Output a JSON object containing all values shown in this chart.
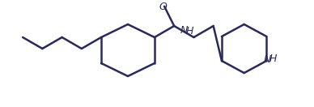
{
  "background_color": "#ffffff",
  "line_color": "#2a2a5a",
  "line_width": 1.8,
  "figsize": [
    3.88,
    1.32
  ],
  "dpi": 100,
  "NH_amide": {
    "text": "H",
    "fontsize": 9
  },
  "N_amide": {
    "text": "N",
    "fontsize": 9
  },
  "label_O": {
    "text": "O",
    "fontsize": 9
  },
  "label_NH_pip": {
    "text": "H",
    "fontsize": 9
  },
  "label_N_pip": {
    "text": "N",
    "fontsize": 9
  }
}
